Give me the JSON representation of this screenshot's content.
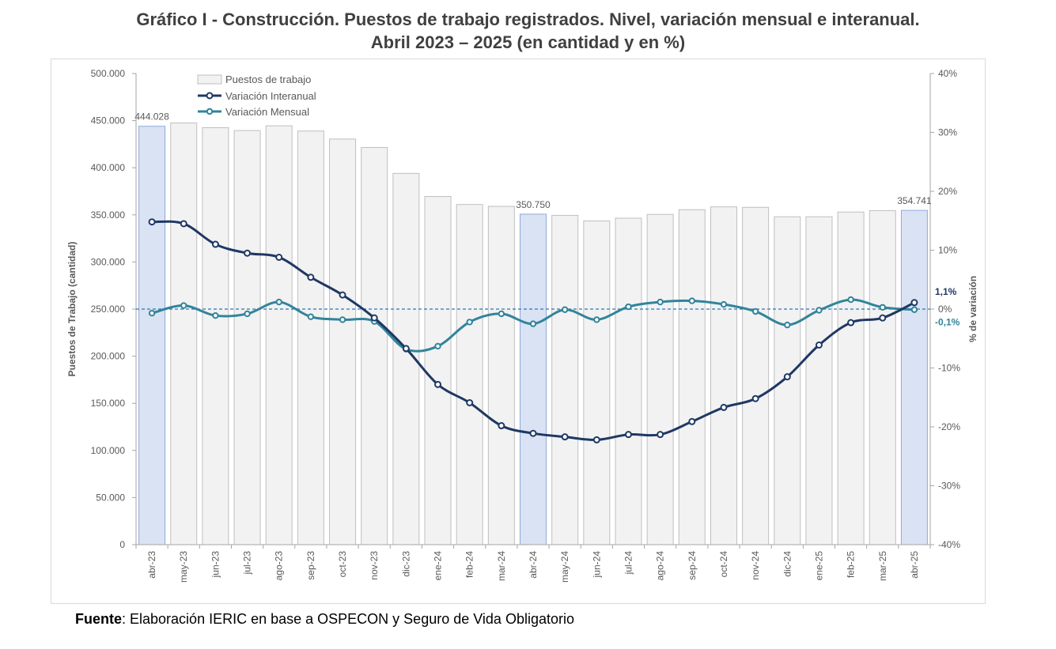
{
  "title_line1": "Gráfico I - Construcción. Puestos de trabajo registrados. Nivel, variación mensual e interanual.",
  "title_line2": "Abril 2023 – 2025 (en cantidad y en %)",
  "source_label": "Fuente",
  "source_text": ": Elaboración IERIC en base a OSPECON y Seguro de Vida Obligatorio",
  "chart_data": {
    "type": "bar",
    "categories": [
      "abr-23",
      "may-23",
      "jun-23",
      "jul-23",
      "ago-23",
      "sep-23",
      "oct-23",
      "nov-23",
      "dic-23",
      "ene-24",
      "feb-24",
      "mar-24",
      "abr-24",
      "may-24",
      "jun-24",
      "jul-24",
      "ago-24",
      "sep-24",
      "oct-24",
      "nov-24",
      "dic-24",
      "ene-25",
      "feb-25",
      "mar-25",
      "abr-25"
    ],
    "series": [
      {
        "name": "Puestos de trabajo",
        "type": "bar",
        "axis": "left",
        "values": [
          444028,
          447500,
          442500,
          439500,
          444500,
          439000,
          430500,
          421500,
          394000,
          369500,
          361000,
          359000,
          350750,
          349500,
          343500,
          346500,
          350500,
          355500,
          358500,
          358000,
          348000,
          348000,
          353000,
          354500,
          354741
        ]
      },
      {
        "name": "Variación Interanual",
        "type": "line",
        "axis": "right",
        "values": [
          14.8,
          14.5,
          11.0,
          9.5,
          8.8,
          5.4,
          2.4,
          -1.5,
          -6.7,
          -12.8,
          -15.9,
          -19.8,
          -21.1,
          -21.7,
          -22.2,
          -21.3,
          -21.3,
          -19.1,
          -16.7,
          -15.2,
          -11.5,
          -6.1,
          -2.3,
          -1.5,
          1.1
        ]
      },
      {
        "name": "Variación Mensual",
        "type": "line",
        "axis": "right",
        "values": [
          -0.7,
          0.6,
          -1.1,
          -0.8,
          1.2,
          -1.3,
          -1.8,
          -2.1,
          -6.8,
          -6.3,
          -2.2,
          -0.8,
          -2.5,
          -0.1,
          -1.8,
          0.4,
          1.2,
          1.4,
          0.8,
          -0.4,
          -2.7,
          -0.2,
          1.6,
          0.3,
          -0.1
        ]
      }
    ],
    "highlighted_bars": [
      0,
      12,
      24
    ],
    "bar_labels": [
      {
        "index": 0,
        "text": "444.028"
      },
      {
        "index": 12,
        "text": "350.750"
      },
      {
        "index": 24,
        "text": "354.741"
      }
    ],
    "end_labels": {
      "interanual": "1,1%",
      "mensual": "-0,1%"
    },
    "y_left": {
      "label": "Puestos de Trabajo (cantidad)",
      "min": 0,
      "max": 500000,
      "ticks": [
        "0",
        "50.000",
        "100.000",
        "150.000",
        "200.000",
        "250.000",
        "300.000",
        "350.000",
        "400.000",
        "450.000",
        "500.000"
      ]
    },
    "y_right": {
      "label": "% de variación",
      "min": -40,
      "max": 40,
      "ticks": [
        "-40%",
        "-30%",
        "-20%",
        "-10%",
        "0%",
        "10%",
        "20%",
        "30%",
        "40%"
      ]
    },
    "grid": false,
    "legend_position": "top-left",
    "colors": {
      "bar": "#f2f2f2",
      "bar_border": "#bfbfbf",
      "bar_highlight": "#dae3f3",
      "bar_highlight_border": "#8faadc",
      "interanual": "#1f3864",
      "mensual": "#31849b",
      "zero_line": "#2e75b6",
      "axis_text": "#595959"
    }
  }
}
